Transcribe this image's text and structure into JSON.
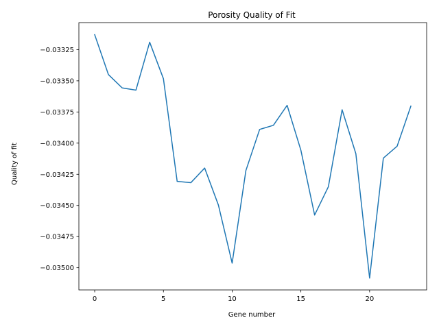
{
  "chart_data": {
    "type": "line",
    "title": "Porosity Quality of Fit",
    "xlabel": "Gene number",
    "ylabel": "Quality of fit",
    "x": [
      0,
      1,
      2,
      3,
      4,
      5,
      6,
      7,
      8,
      9,
      10,
      11,
      12,
      13,
      14,
      15,
      16,
      17,
      18,
      19,
      20,
      21,
      22,
      23
    ],
    "series": [
      {
        "values": [
          -0.03313,
          -0.03345,
          -0.033557,
          -0.033575,
          -0.03319,
          -0.033483,
          -0.034307,
          -0.034317,
          -0.0342,
          -0.034497,
          -0.034963,
          -0.03422,
          -0.03389,
          -0.033857,
          -0.033697,
          -0.034057,
          -0.034577,
          -0.03435,
          -0.033732,
          -0.034085,
          -0.035083,
          -0.03412,
          -0.034025,
          -0.033703
        ],
        "color": "#1f77b4"
      }
    ],
    "xlim": [
      -1.15,
      24.15
    ],
    "ylim": [
      -0.035178,
      -0.033033
    ],
    "xticks": [
      0,
      5,
      10,
      15,
      20
    ],
    "xtick_labels": [
      "0",
      "5",
      "10",
      "15",
      "20"
    ],
    "yticks": [
      -0.03325,
      -0.0335,
      -0.03375,
      -0.034,
      -0.03425,
      -0.0345,
      -0.03475,
      -0.035
    ],
    "ytick_labels": [
      "−0.03325",
      "−0.03350",
      "−0.03375",
      "−0.03400",
      "−0.03425",
      "−0.03450",
      "−0.03475",
      "−0.03500"
    ],
    "grid": false,
    "legend": false
  }
}
